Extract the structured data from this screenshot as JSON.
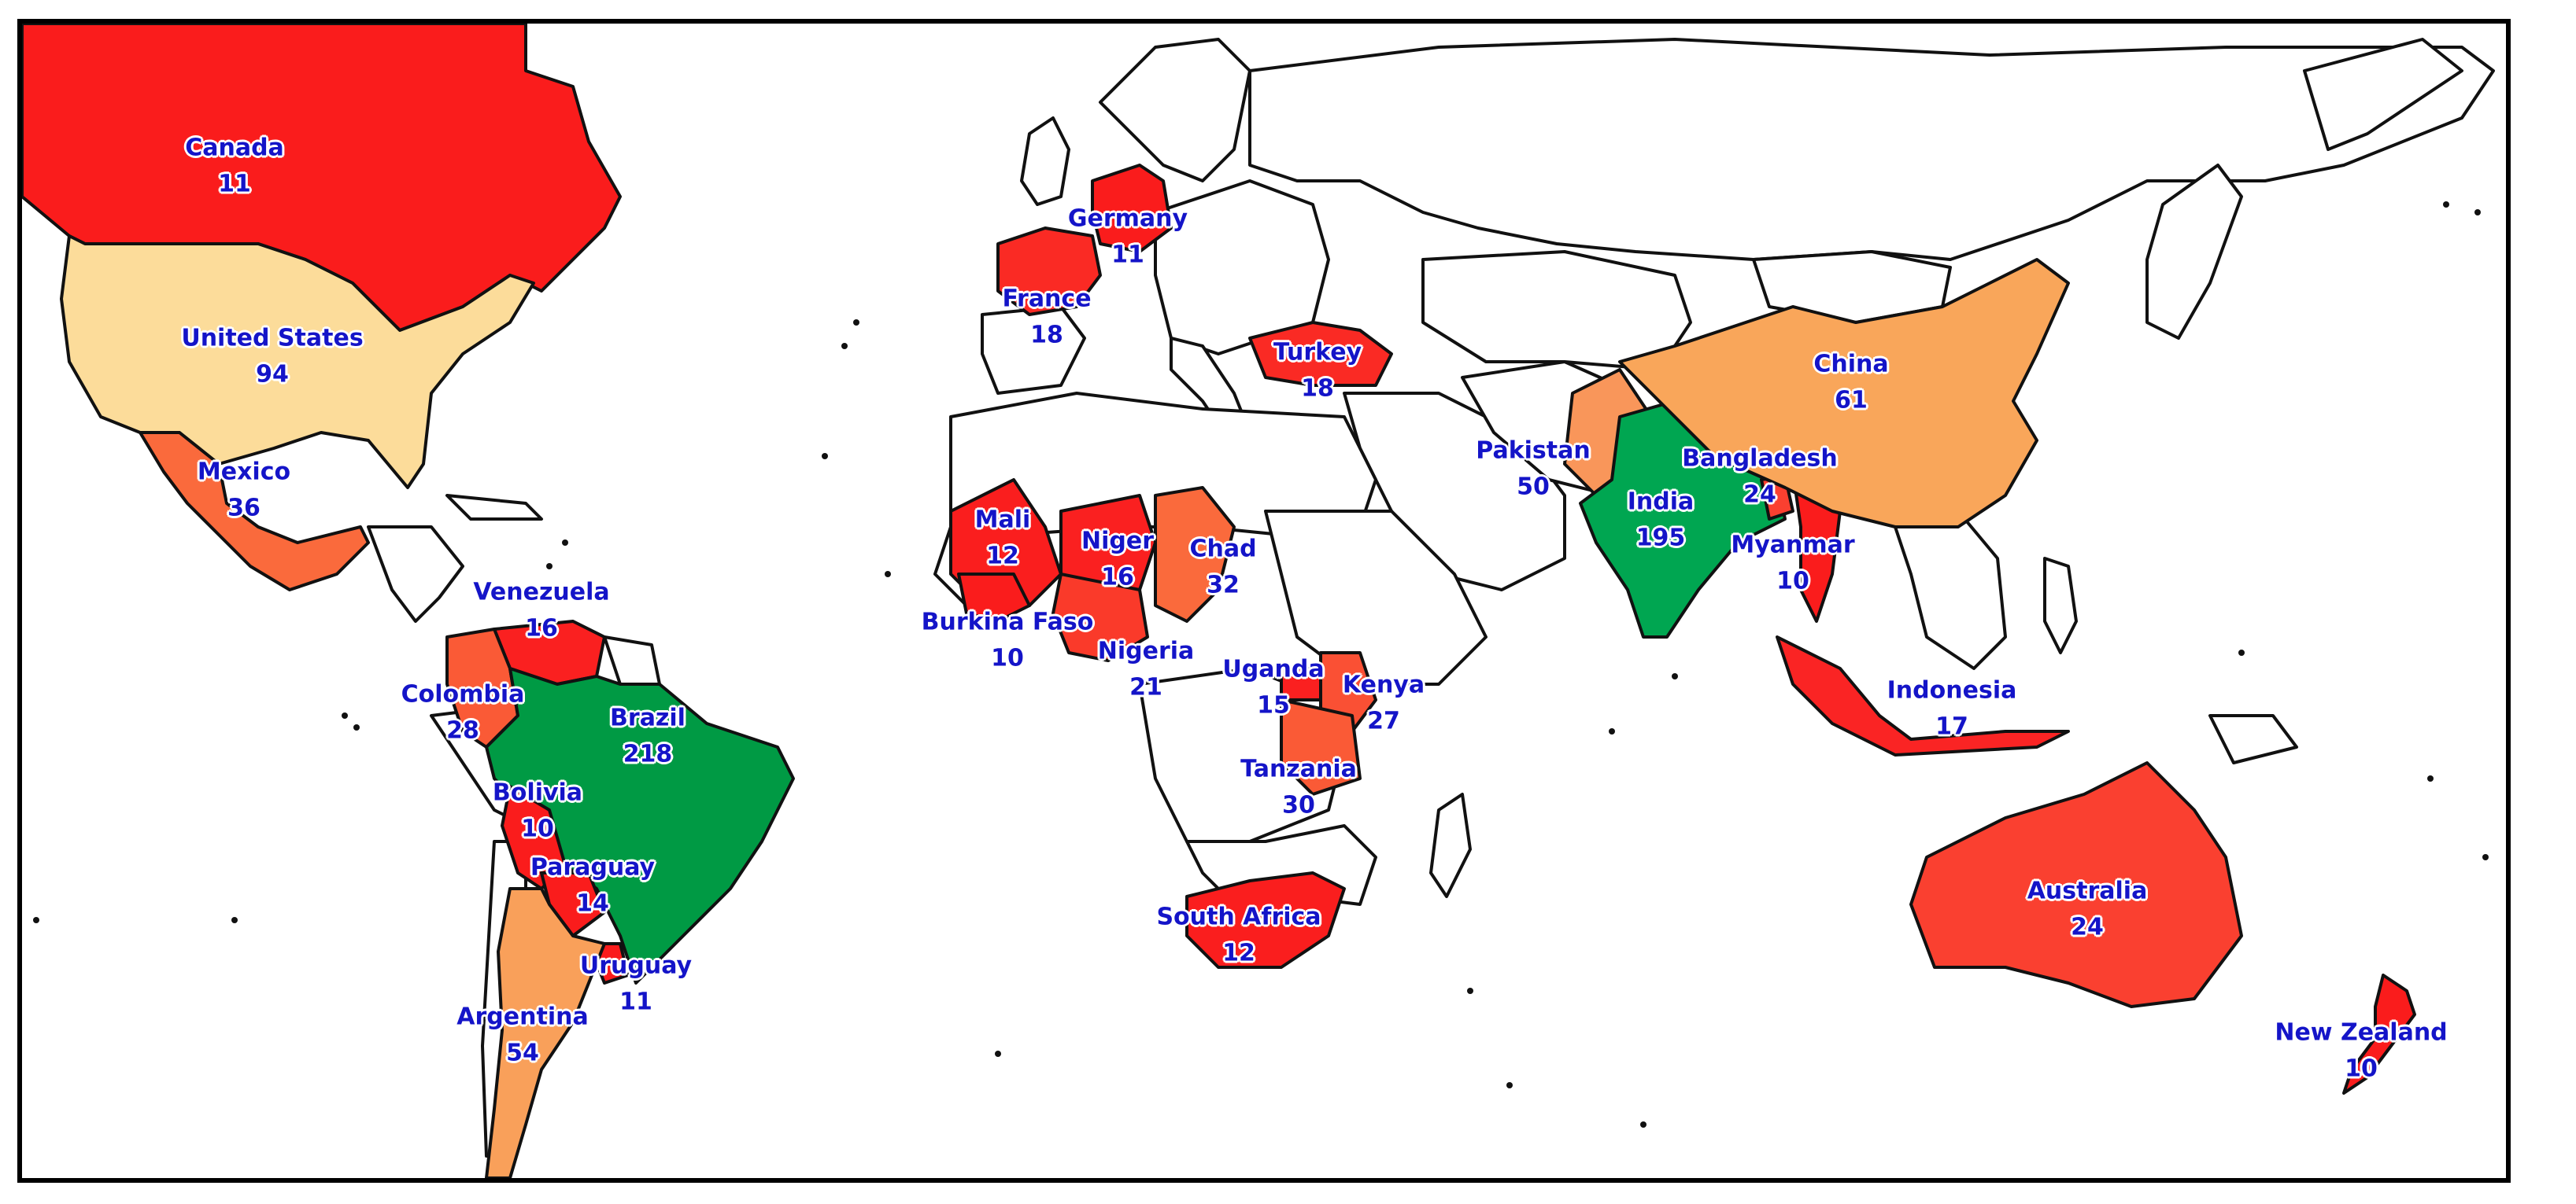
{
  "colors": {
    "highest": "#00a651",
    "high": "#f9a65a",
    "mid": "#fcd99a",
    "orange_red": "#fa6a3c",
    "red": "#fa1c1c",
    "outline": "#111111",
    "label": "#1414c8"
  },
  "countries": [
    {
      "id": "canada",
      "name": "Canada",
      "value": "11",
      "fill": "#fa1c1c"
    },
    {
      "id": "united-states",
      "name": "United States",
      "value": "94",
      "fill": "#fcdc9a"
    },
    {
      "id": "mexico",
      "name": "Mexico",
      "value": "36",
      "fill": "#fa6a3c"
    },
    {
      "id": "venezuela",
      "name": "Venezuela",
      "value": "16",
      "fill": "#fa2020"
    },
    {
      "id": "colombia",
      "name": "Colombia",
      "value": "28",
      "fill": "#fa5a36"
    },
    {
      "id": "brazil",
      "name": "Brazil",
      "value": "218",
      "fill": "#009a44"
    },
    {
      "id": "bolivia",
      "name": "Bolivia",
      "value": "10",
      "fill": "#fa1c1c"
    },
    {
      "id": "paraguay",
      "name": "Paraguay",
      "value": "14",
      "fill": "#fa1c1c"
    },
    {
      "id": "uruguay",
      "name": "Uruguay",
      "value": "11",
      "fill": "#fa1c1c"
    },
    {
      "id": "argentina",
      "name": "Argentina",
      "value": "54",
      "fill": "#f9a05a"
    },
    {
      "id": "germany",
      "name": "Germany",
      "value": "11",
      "fill": "#fa1c1c"
    },
    {
      "id": "france",
      "name": "France",
      "value": "18",
      "fill": "#fa2a24"
    },
    {
      "id": "turkey",
      "name": "Turkey",
      "value": "18",
      "fill": "#fa2a24"
    },
    {
      "id": "mali",
      "name": "Mali",
      "value": "12",
      "fill": "#fa1e1e"
    },
    {
      "id": "niger",
      "name": "Niger",
      "value": "16",
      "fill": "#fa2020"
    },
    {
      "id": "chad",
      "name": "Chad",
      "value": "32",
      "fill": "#fa6a3c"
    },
    {
      "id": "burkina-faso",
      "name": "Burkina Faso",
      "value": "10",
      "fill": "#fa1c1c"
    },
    {
      "id": "nigeria",
      "name": "Nigeria",
      "value": "21",
      "fill": "#fa3a2a"
    },
    {
      "id": "uganda",
      "name": "Uganda",
      "value": "15",
      "fill": "#fa2020"
    },
    {
      "id": "kenya",
      "name": "Kenya",
      "value": "27",
      "fill": "#fa5034"
    },
    {
      "id": "tanzania",
      "name": "Tanzania",
      "value": "30",
      "fill": "#fa5a36"
    },
    {
      "id": "south-africa",
      "name": "South Africa",
      "value": "12",
      "fill": "#fa1e1e"
    },
    {
      "id": "pakistan",
      "name": "Pakistan",
      "value": "50",
      "fill": "#f9965a"
    },
    {
      "id": "india",
      "name": "India",
      "value": "195",
      "fill": "#00a651"
    },
    {
      "id": "bangladesh",
      "name": "Bangladesh",
      "value": "24",
      "fill": "#fa4030"
    },
    {
      "id": "myanmar",
      "name": "Myanmar",
      "value": "10",
      "fill": "#fa1c1c"
    },
    {
      "id": "china",
      "name": "China",
      "value": "61",
      "fill": "#f9a65a"
    },
    {
      "id": "indonesia",
      "name": "Indonesia",
      "value": "17",
      "fill": "#fa2424"
    },
    {
      "id": "australia",
      "name": "Australia",
      "value": "24",
      "fill": "#fa4030"
    },
    {
      "id": "new-zealand",
      "name": "New Zealand",
      "value": "10",
      "fill": "#fa1c1c"
    }
  ]
}
